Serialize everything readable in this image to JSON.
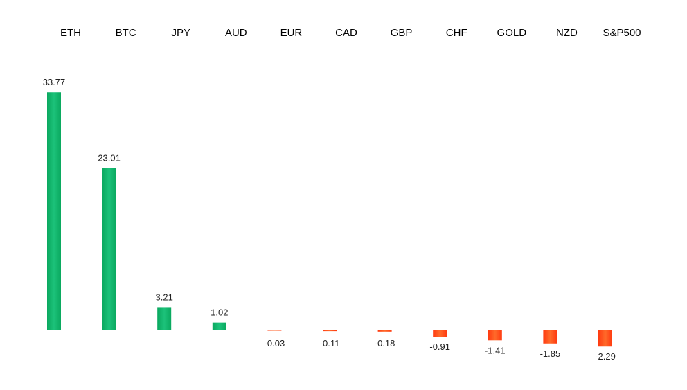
{
  "chart_data": {
    "type": "bar",
    "categories": [
      "ETH",
      "BTC",
      "JPY",
      "AUD",
      "EUR",
      "CAD",
      "GBP",
      "CHF",
      "GOLD",
      "NZD",
      "S&P500"
    ],
    "values": [
      33.77,
      23.01,
      3.21,
      1.02,
      -0.03,
      -0.11,
      -0.18,
      -0.91,
      -1.41,
      -1.85,
      -2.29
    ],
    "value_labels": [
      "33.77",
      "23.01",
      "3.21",
      "1.02",
      "-0.03",
      "-0.11",
      "-0.18",
      "-0.91",
      "-1.41",
      "-1.85",
      "-2.29"
    ],
    "title": "",
    "xlabel": "",
    "ylabel": "",
    "ylim": [
      -3,
      34
    ],
    "grid": false,
    "legend": "none",
    "category_label_position": "top",
    "colors": {
      "positive": "#0db36a",
      "positive_light": "#1cc27a",
      "negative": "#ff4a12",
      "negative_light": "#ff6a2a",
      "axis": "#bfbfbf"
    }
  }
}
